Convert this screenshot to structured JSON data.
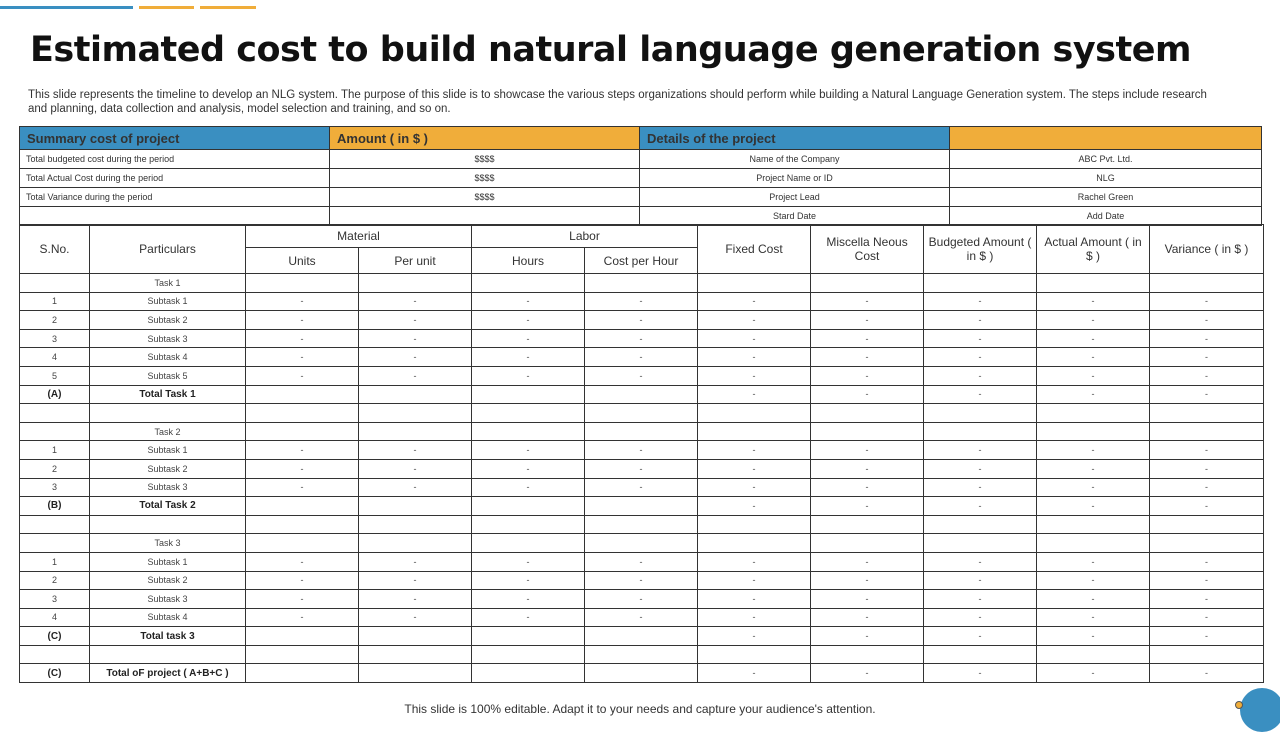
{
  "title": "Estimated cost to build natural language generation system",
  "description": "This slide represents the timeline to develop an NLG system. The purpose of this slide is to showcase the various steps organizations should perform while building a Natural Language Generation system. The steps include research and planning, data collection and analysis, model selection and training, and so on.",
  "summary": {
    "headers": [
      "Summary cost of project",
      "Amount ( in $ )",
      "Details of the project",
      ""
    ],
    "rows": [
      [
        "Total budgeted  cost during the period",
        "$$$$",
        "Name of the Company",
        "ABC Pvt. Ltd."
      ],
      [
        "Total Actual Cost during the period",
        "$$$$",
        "Project Name or ID",
        "NLG"
      ],
      [
        "Total Variance during the period",
        "$$$$",
        "Project Lead",
        "Rachel Green"
      ],
      [
        "",
        "",
        "Stard Date",
        "Add Date"
      ]
    ]
  },
  "cost_table": {
    "headers": {
      "sno": "S.No.",
      "particulars": "Particulars",
      "material": "Material",
      "labor": "Labor",
      "units": "Units",
      "per_unit": "Per unit",
      "hours": "Hours",
      "cost_per_hour": "Cost per Hour",
      "fixed_cost": "Fixed Cost",
      "misc_cost": "Miscella Neous Cost",
      "budgeted": "Budgeted Amount ( in $ )",
      "actual": "Actual Amount ( in $ )",
      "variance": "Variance ( in $ )"
    },
    "rows": [
      [
        "",
        "Task 1",
        "",
        "",
        "",
        "",
        "",
        "",
        "",
        "",
        ""
      ],
      [
        "1",
        "Subtask 1",
        "-",
        "-",
        "-",
        "-",
        "-",
        "-",
        "-",
        "-",
        "-"
      ],
      [
        "2",
        "Subtask 2",
        "-",
        "-",
        "-",
        "-",
        "-",
        "-",
        "-",
        "-",
        "-"
      ],
      [
        "3",
        "Subtask 3",
        "-",
        "-",
        "-",
        "-",
        "-",
        "-",
        "-",
        "-",
        "-"
      ],
      [
        "4",
        "Subtask 4",
        "-",
        "-",
        "-",
        "-",
        "-",
        "-",
        "-",
        "-",
        "-"
      ],
      [
        "5",
        "Subtask 5",
        "-",
        "-",
        "-",
        "-",
        "-",
        "-",
        "-",
        "-",
        "-"
      ],
      [
        "(A)",
        "Total Task 1",
        "",
        "",
        "",
        "",
        "-",
        "-",
        "-",
        "-",
        "-"
      ],
      [
        "",
        "",
        "",
        "",
        "",
        "",
        "",
        "",
        "",
        "",
        ""
      ],
      [
        "",
        "Task 2",
        "",
        "",
        "",
        "",
        "",
        "",
        "",
        "",
        ""
      ],
      [
        "1",
        "Subtask 1",
        "-",
        "-",
        "-",
        "-",
        "-",
        "-",
        "-",
        "-",
        "-"
      ],
      [
        "2",
        "Subtask 2",
        "-",
        "-",
        "-",
        "-",
        "-",
        "-",
        "-",
        "-",
        "-"
      ],
      [
        "3",
        "Subtask 3",
        "-",
        "-",
        "-",
        "-",
        "-",
        "-",
        "-",
        "-",
        "-"
      ],
      [
        "(B)",
        "Total Task 2",
        "",
        "",
        "",
        "",
        "-",
        "-",
        "-",
        "-",
        "-"
      ],
      [
        "",
        "",
        "",
        "",
        "",
        "",
        "",
        "",
        "",
        "",
        ""
      ],
      [
        "",
        "Task 3",
        "",
        "",
        "",
        "",
        "",
        "",
        "",
        "",
        ""
      ],
      [
        "1",
        "Subtask 1",
        "-",
        "-",
        "-",
        "-",
        "-",
        "-",
        "-",
        "-",
        "-"
      ],
      [
        "2",
        "Subtask 2",
        "-",
        "-",
        "-",
        "-",
        "-",
        "-",
        "-",
        "-",
        "-"
      ],
      [
        "3",
        "Subtask 3",
        "-",
        "-",
        "-",
        "-",
        "-",
        "-",
        "-",
        "-",
        "-"
      ],
      [
        "4",
        "Subtask 4",
        "-",
        "-",
        "-",
        "-",
        "-",
        "-",
        "-",
        "-",
        "-"
      ],
      [
        "(C)",
        "Total task 3",
        "",
        "",
        "",
        "",
        "-",
        "-",
        "-",
        "-",
        "-"
      ],
      [
        "",
        "",
        "",
        "",
        "",
        "",
        "",
        "",
        "",
        "",
        ""
      ],
      [
        "(C)",
        "Total oF project ( A+B+C )",
        "",
        "",
        "",
        "",
        "-",
        "-",
        "-",
        "-",
        "-"
      ]
    ],
    "bold_rows": [
      6,
      12,
      19,
      21
    ]
  },
  "footer": "This slide is 100% editable. Adapt it to your needs and capture your audience's attention.",
  "colors": {
    "blue": "#3a8fc1",
    "orange": "#f0ad3a"
  }
}
